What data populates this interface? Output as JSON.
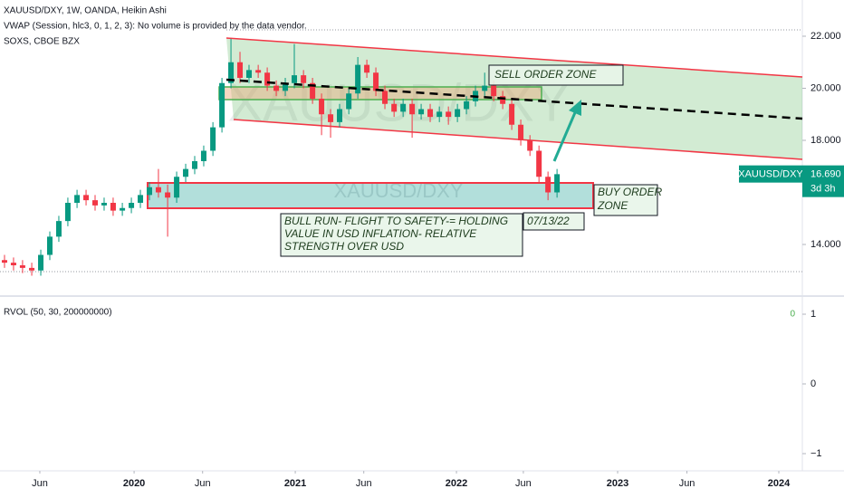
{
  "header": {
    "symbol_line": "XAUUSD/DXY, 1W, OANDA, Heikin Ashi",
    "vwap_line": "VWAP (Session, hlc3, 0, 1, 2, 3): No volume is provided by the data vendor.",
    "compare_line": "SOXS, CBOE BZX",
    "watermark": "XAUUSD/DXY"
  },
  "annotations": {
    "sell_zone": "SELL ORDER ZONE",
    "buy_zone": [
      "BUY ORDER",
      "ZONE"
    ],
    "thesis": [
      "BULL RUN- FLIGHT TO  SAFETY-= HOLDING",
      "VALUE IN USD INFLATION- RELATIVE",
      "STRENGTH OVER USD"
    ],
    "date": "07/13/22"
  },
  "price_tag": {
    "symbol": "XAUUSD/DXY",
    "last": {
      "value": 16.69,
      "label": "16.690"
    },
    "countdown": "3d 3h"
  },
  "chart_data": [
    {
      "type": "candlestick",
      "up_color": "#089981",
      "down_color": "#f23645",
      "x": [
        2019.196,
        2019.252,
        2019.308,
        2019.365,
        2019.421,
        2019.477,
        2019.533,
        2019.589,
        2019.646,
        2019.702,
        2019.758,
        2019.814,
        2019.87,
        2019.927,
        2019.983,
        2020.039,
        2020.095,
        2020.151,
        2020.208,
        2020.264,
        2020.32,
        2020.376,
        2020.432,
        2020.489,
        2020.545,
        2020.601,
        2020.657,
        2020.713,
        2020.77,
        2020.826,
        2020.882,
        2020.938,
        2020.994,
        2021.051,
        2021.107,
        2021.163,
        2021.219,
        2021.275,
        2021.332,
        2021.388,
        2021.444,
        2021.5,
        2021.556,
        2021.613,
        2021.669,
        2021.725,
        2021.781,
        2021.837,
        2021.894,
        2021.95,
        2022.006,
        2022.062,
        2022.118,
        2022.175,
        2022.231,
        2022.287,
        2022.343,
        2022.399,
        2022.456,
        2022.512,
        2022.568,
        2022.624
      ],
      "open": [
        13.4,
        13.3,
        13.2,
        13.1,
        13.0,
        13.6,
        14.3,
        14.9,
        15.6,
        15.9,
        15.7,
        15.5,
        15.6,
        15.3,
        15.4,
        15.6,
        15.9,
        16.2,
        16.0,
        15.8,
        16.6,
        16.9,
        17.2,
        17.6,
        18.5,
        20.2,
        21.0,
        20.4,
        20.7,
        20.6,
        20.1,
        19.9,
        20.2,
        20.5,
        20.2,
        19.6,
        19.0,
        18.7,
        19.2,
        19.8,
        20.9,
        20.6,
        19.9,
        19.4,
        19.1,
        19.4,
        19.0,
        19.2,
        18.9,
        19.1,
        18.9,
        19.2,
        19.5,
        19.9,
        20.1,
        19.7,
        19.4,
        18.6,
        18.0,
        17.6,
        16.6,
        16.0
      ],
      "high": [
        13.6,
        13.5,
        13.4,
        13.3,
        13.8,
        14.5,
        15.1,
        15.8,
        16.1,
        16.1,
        15.9,
        15.8,
        15.8,
        15.6,
        15.8,
        16.1,
        16.4,
        16.9,
        16.3,
        16.8,
        17.1,
        17.4,
        17.8,
        18.7,
        20.4,
        21.9,
        21.4,
        20.9,
        20.9,
        20.8,
        20.3,
        20.4,
        21.7,
        20.7,
        20.4,
        19.8,
        19.2,
        19.4,
        20.0,
        21.2,
        21.1,
        20.8,
        20.1,
        19.6,
        19.6,
        19.6,
        19.4,
        19.4,
        19.3,
        19.3,
        19.4,
        19.7,
        20.1,
        20.6,
        20.3,
        19.9,
        19.6,
        18.8,
        18.2,
        17.8,
        16.8,
        16.9
      ],
      "low": [
        13.1,
        13.0,
        12.9,
        12.8,
        12.8,
        13.4,
        14.1,
        14.7,
        15.4,
        15.5,
        15.3,
        15.3,
        15.1,
        15.1,
        15.2,
        15.4,
        15.7,
        15.8,
        14.3,
        15.6,
        16.4,
        16.7,
        17.0,
        17.4,
        18.3,
        20.0,
        20.2,
        20.2,
        20.4,
        19.9,
        19.7,
        19.7,
        20.0,
        20.0,
        19.4,
        18.2,
        18.1,
        18.5,
        19.0,
        19.6,
        20.4,
        19.7,
        19.2,
        18.9,
        18.9,
        18.1,
        18.8,
        18.7,
        18.7,
        18.6,
        18.7,
        19.0,
        19.3,
        19.7,
        19.5,
        19.2,
        18.4,
        17.8,
        17.4,
        16.4,
        15.7,
        15.8
      ],
      "close": [
        13.3,
        13.2,
        13.1,
        13.0,
        13.6,
        14.3,
        14.9,
        15.6,
        15.9,
        15.7,
        15.5,
        15.6,
        15.3,
        15.4,
        15.6,
        15.9,
        16.2,
        16.0,
        15.8,
        16.6,
        16.9,
        17.2,
        17.6,
        18.5,
        20.2,
        21.0,
        20.4,
        20.7,
        20.6,
        20.1,
        19.9,
        20.2,
        20.5,
        20.2,
        19.6,
        19.0,
        18.7,
        19.2,
        19.8,
        20.9,
        20.6,
        19.9,
        19.4,
        19.1,
        19.4,
        19.0,
        19.2,
        18.9,
        19.1,
        18.9,
        19.2,
        19.5,
        19.9,
        20.1,
        19.7,
        19.4,
        18.6,
        18.0,
        17.6,
        16.6,
        16.0,
        16.7
      ],
      "xlim": [
        2019.168,
        2024.146
      ],
      "xticks": [
        {
          "value": 2019.415,
          "label": "Jun"
        },
        2020,
        {
          "value": 2020.425,
          "label": "Jun"
        },
        2021,
        {
          "value": 2021.425,
          "label": "Jun"
        },
        2022,
        {
          "value": 2022.415,
          "label": "Jun"
        },
        2023,
        {
          "value": 2023.43,
          "label": "Jun"
        },
        2024
      ],
      "ylim": [
        12.087,
        23.391
      ],
      "yticks": [
        {
          "value": 22,
          "label": "22.000"
        },
        {
          "value": 20,
          "label": "20.000"
        },
        {
          "value": 18,
          "label": "18.000"
        },
        {
          "value": 14,
          "label": "14.000"
        }
      ]
    },
    {
      "type": "indicator",
      "title": "RVOL (50, 30, 200000000)",
      "last_label": "0",
      "ylim": [
        -1.247,
        1.26
      ],
      "yticks": [
        1,
        0,
        {
          "value": -1,
          "label": "−1"
        }
      ]
    }
  ]
}
